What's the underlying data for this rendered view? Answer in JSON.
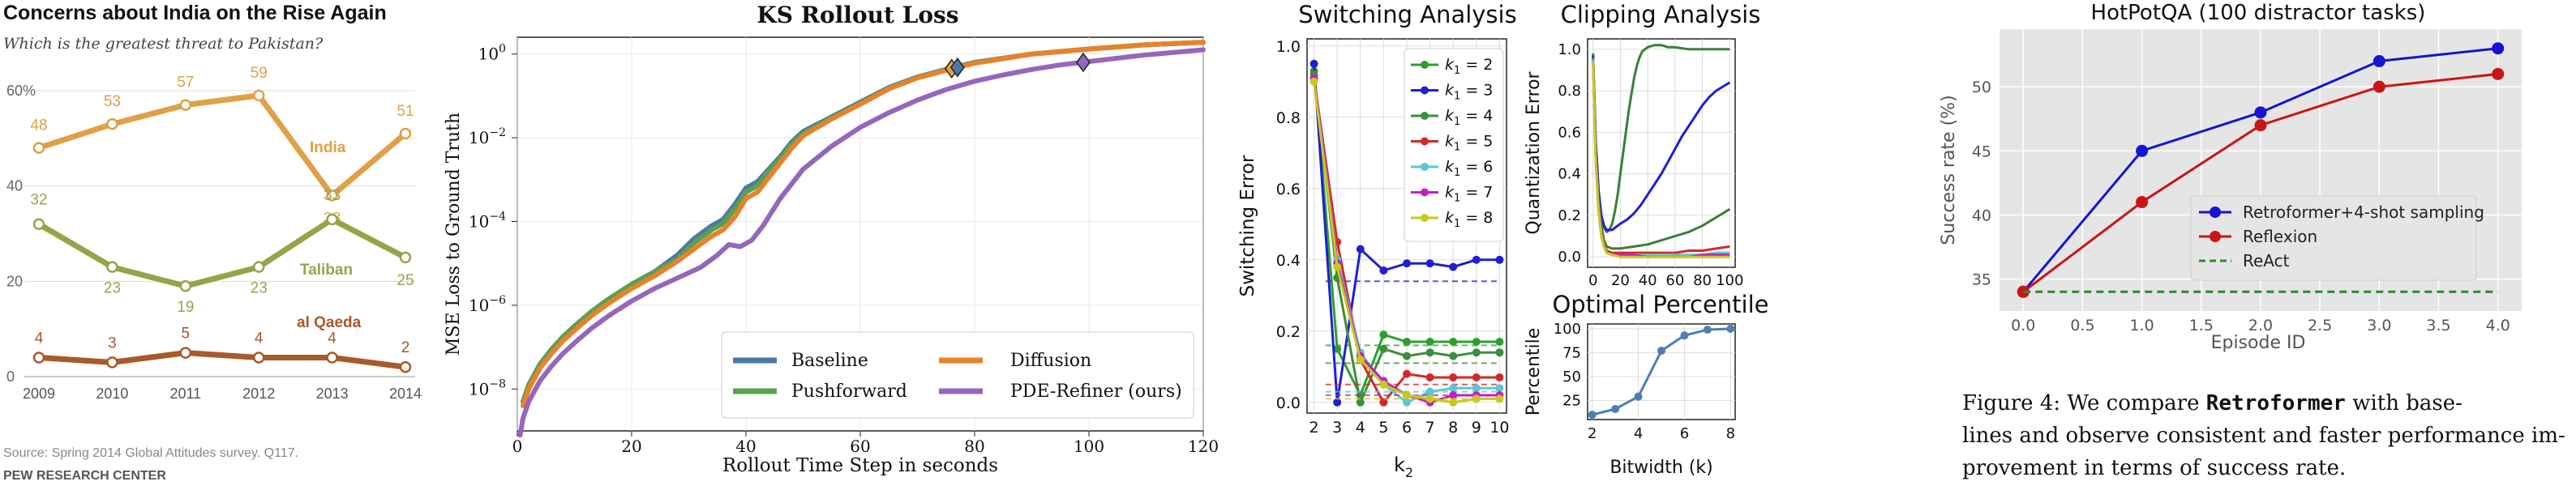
{
  "chart_data": [
    {
      "id": "pew",
      "type": "line",
      "title": "Concerns about India on the Rise Again",
      "subtitle": "Which is the greatest threat to Pakistan?",
      "x": [
        2009,
        2010,
        2011,
        2012,
        2013,
        2014
      ],
      "x_ticks": [
        "2009",
        "2010",
        "2011",
        "2012",
        "2013",
        "2014"
      ],
      "ylim": [
        0,
        60
      ],
      "y_ticks": [
        0,
        20,
        40,
        60
      ],
      "y_top_label": "60%",
      "series": [
        {
          "name": "India",
          "color": "#e0a045",
          "values": [
            48,
            53,
            57,
            59,
            38,
            51
          ],
          "labels": [
            "48",
            "53",
            "57",
            "59",
            "38",
            "51"
          ]
        },
        {
          "name": "Taliban",
          "color": "#98a348",
          "values": [
            32,
            23,
            19,
            23,
            33,
            25
          ],
          "labels": [
            "32",
            "23",
            "19",
            "23",
            "33",
            "25"
          ]
        },
        {
          "name": "al Qaeda",
          "color": "#a85a2c",
          "values": [
            4,
            3,
            5,
            4,
            4,
            2
          ],
          "labels": [
            "4",
            "3",
            "5",
            "4",
            "4",
            "2"
          ]
        }
      ],
      "source": "Source: Spring 2014 Global Attitudes survey. Q117.",
      "brand": "PEW RESEARCH CENTER",
      "grid": false
    },
    {
      "id": "ks",
      "type": "line",
      "title": "KS Rollout Loss",
      "xlabel": "Rollout Time Step in seconds",
      "ylabel": "MSE Loss to Ground Truth",
      "xlim": [
        0,
        120
      ],
      "x_ticks": [
        0,
        20,
        40,
        60,
        80,
        100,
        120
      ],
      "y_scale": "log",
      "ylim_exp": [
        -9,
        0.4
      ],
      "y_ticks": [
        {
          "exp": 0,
          "label": "10",
          "sup": "0"
        },
        {
          "exp": -2,
          "label": "10",
          "sup": "−2"
        },
        {
          "exp": -4,
          "label": "10",
          "sup": "−4"
        },
        {
          "exp": -6,
          "label": "10",
          "sup": "−6"
        },
        {
          "exp": -8,
          "label": "10",
          "sup": "−8"
        }
      ],
      "series": [
        {
          "name": "Baseline",
          "color": "#4c78a8",
          "x": [
            1,
            2,
            4,
            6,
            8,
            10,
            13,
            16,
            20,
            24,
            28,
            31,
            34,
            36,
            38,
            40,
            42,
            44,
            46,
            48,
            50,
            55,
            60,
            65,
            70,
            76,
            80,
            90,
            100,
            110,
            120
          ],
          "y": [
            -8.3,
            -7.9,
            -7.4,
            -7.05,
            -6.75,
            -6.5,
            -6.15,
            -5.85,
            -5.5,
            -5.2,
            -4.8,
            -4.4,
            -4.1,
            -3.95,
            -3.6,
            -3.2,
            -3.05,
            -2.75,
            -2.45,
            -2.1,
            -1.85,
            -1.5,
            -1.15,
            -0.8,
            -0.55,
            -0.33,
            -0.2,
            0.0,
            0.12,
            0.22,
            0.28
          ]
        },
        {
          "name": "Pushforward",
          "color": "#59a14f",
          "x": [
            1,
            2,
            4,
            6,
            8,
            10,
            13,
            16,
            20,
            24,
            28,
            31,
            34,
            36,
            38,
            40,
            42,
            44,
            46,
            48,
            50,
            55,
            60,
            65,
            70,
            76,
            80,
            90,
            100,
            110,
            120
          ],
          "y": [
            -8.3,
            -7.9,
            -7.4,
            -7.05,
            -6.75,
            -6.5,
            -6.15,
            -5.85,
            -5.5,
            -5.2,
            -4.9,
            -4.5,
            -4.2,
            -4.05,
            -3.7,
            -3.3,
            -3.15,
            -2.8,
            -2.5,
            -2.15,
            -1.9,
            -1.52,
            -1.18,
            -0.82,
            -0.56,
            -0.34,
            -0.21,
            0.0,
            0.12,
            0.22,
            0.28
          ]
        },
        {
          "name": "Diffusion",
          "color": "#e8822a",
          "x": [
            1,
            2,
            4,
            6,
            8,
            10,
            13,
            16,
            20,
            24,
            28,
            31,
            34,
            36,
            38,
            40,
            42,
            44,
            46,
            48,
            50,
            55,
            60,
            65,
            70,
            76,
            80,
            90,
            100,
            110,
            120
          ],
          "y": [
            -8.4,
            -8.0,
            -7.5,
            -7.15,
            -6.85,
            -6.6,
            -6.25,
            -5.95,
            -5.6,
            -5.3,
            -4.95,
            -4.65,
            -4.35,
            -4.2,
            -3.9,
            -3.45,
            -3.3,
            -2.95,
            -2.6,
            -2.25,
            -1.95,
            -1.55,
            -1.2,
            -0.83,
            -0.57,
            -0.35,
            -0.22,
            0.0,
            0.12,
            0.22,
            0.28
          ]
        },
        {
          "name": "PDE-Refiner (ours)",
          "color": "#9467bd",
          "x": [
            0.5,
            1,
            2,
            4,
            6,
            8,
            10,
            13,
            16,
            20,
            24,
            28,
            32,
            35,
            37,
            39,
            41,
            43,
            46,
            50,
            55,
            60,
            65,
            70,
            75,
            80,
            85,
            90,
            95,
            100,
            110,
            120
          ],
          "y": [
            -9.1,
            -8.7,
            -8.3,
            -7.8,
            -7.45,
            -7.15,
            -6.9,
            -6.55,
            -6.25,
            -5.9,
            -5.6,
            -5.35,
            -5.1,
            -4.8,
            -4.55,
            -4.6,
            -4.45,
            -4.1,
            -3.45,
            -2.75,
            -2.2,
            -1.75,
            -1.4,
            -1.1,
            -0.85,
            -0.65,
            -0.5,
            -0.37,
            -0.26,
            -0.18,
            -0.02,
            0.1
          ]
        }
      ],
      "markers": [
        {
          "series": "Diffusion",
          "x": 76,
          "y": -0.35,
          "color": "#e8a23a"
        },
        {
          "series": "Baseline",
          "x": 77,
          "y": -0.32,
          "color": "#4c78a8"
        },
        {
          "series": "PDE-Refiner (ours)",
          "x": 99,
          "y": -0.2,
          "color": "#9467bd"
        }
      ],
      "legend_position": "lower-right",
      "grid": true
    },
    {
      "id": "switching",
      "type": "line",
      "title": "Switching Analysis",
      "xlabel": "k",
      "xlabel_sub": "2",
      "ylabel": "Switching Error",
      "xlim": [
        1.7,
        10.3
      ],
      "ylim": [
        -0.03,
        1.02
      ],
      "x_ticks": [
        2,
        3,
        4,
        5,
        6,
        7,
        8,
        9,
        10
      ],
      "y_ticks": [
        0.0,
        0.2,
        0.4,
        0.6,
        0.8,
        1.0
      ],
      "series": [
        {
          "name": "k1 = 2",
          "label": "k",
          "sub": "1",
          "rest": " = 2",
          "color": "#2ca02c",
          "values": [
            0.93,
            0.15,
            0.02,
            0.19,
            0.17,
            0.17,
            0.17,
            0.17,
            0.17
          ],
          "dashed_level": 0.16
        },
        {
          "name": "k1 = 3",
          "label": "k",
          "sub": "1",
          "rest": " = 3",
          "color": "#1f1fd6",
          "values": [
            0.95,
            0.0,
            0.43,
            0.37,
            0.39,
            0.39,
            0.38,
            0.4,
            0.4
          ],
          "dashed_level": 0.34
        },
        {
          "name": "k1 = 4",
          "label": "k",
          "sub": "1",
          "rest": " = 4",
          "color": "#3a8f3a",
          "values": [
            0.92,
            0.35,
            0.0,
            0.15,
            0.13,
            0.14,
            0.13,
            0.14,
            0.14
          ],
          "dashed_level": 0.11
        },
        {
          "name": "k1 = 5",
          "label": "k",
          "sub": "1",
          "rest": " = 5",
          "color": "#d62728",
          "values": [
            0.91,
            0.45,
            0.12,
            0.0,
            0.08,
            0.07,
            0.07,
            0.07,
            0.07
          ],
          "dashed_level": 0.05
        },
        {
          "name": "k1 = 6",
          "label": "k",
          "sub": "1",
          "rest": " = 6",
          "color": "#5bc7d0",
          "values": [
            0.91,
            0.4,
            0.14,
            0.05,
            0.0,
            0.03,
            0.04,
            0.04,
            0.04
          ],
          "dashed_level": 0.03
        },
        {
          "name": "k1 = 7",
          "label": "k",
          "sub": "1",
          "rest": " = 7",
          "color": "#c41fc4",
          "values": [
            0.91,
            0.39,
            0.13,
            0.06,
            0.02,
            0.0,
            0.02,
            0.02,
            0.02
          ],
          "dashed_level": 0.02
        },
        {
          "name": "k1 = 8",
          "label": "k",
          "sub": "1",
          "rest": " = 8",
          "color": "#c8c81e",
          "values": [
            0.9,
            0.38,
            0.12,
            0.05,
            0.02,
            0.01,
            0.0,
            0.01,
            0.01
          ],
          "dashed_level": 0.01
        }
      ],
      "legend_position": "upper-right",
      "grid": true
    },
    {
      "id": "clipping",
      "type": "line",
      "title": "Clipping Analysis",
      "ylabel": "Quantization Error",
      "xlim": [
        -4,
        104
      ],
      "ylim": [
        -0.05,
        1.05
      ],
      "x_ticks": [
        0,
        20,
        40,
        60,
        80,
        100
      ],
      "y_ticks": [
        0.0,
        0.2,
        0.4,
        0.6,
        0.8,
        1.0
      ],
      "series": [
        {
          "color": "#3a7f3a",
          "x": [
            0,
            2,
            4,
            6,
            8,
            10,
            12,
            14,
            16,
            18,
            20,
            22,
            24,
            26,
            28,
            30,
            32,
            34,
            36,
            38,
            40,
            45,
            50,
            55,
            60,
            70,
            80,
            90,
            100
          ],
          "y": [
            0.98,
            0.55,
            0.32,
            0.2,
            0.14,
            0.12,
            0.13,
            0.16,
            0.22,
            0.3,
            0.4,
            0.5,
            0.6,
            0.7,
            0.78,
            0.86,
            0.92,
            0.96,
            0.99,
            1.0,
            1.01,
            1.02,
            1.02,
            1.01,
            1.01,
            1.0,
            1.0,
            1.0,
            1.0
          ]
        },
        {
          "color": "#1f1fd6",
          "x": [
            0,
            2,
            4,
            6,
            8,
            10,
            12,
            14,
            16,
            18,
            20,
            25,
            30,
            35,
            40,
            45,
            50,
            55,
            60,
            65,
            70,
            75,
            80,
            85,
            90,
            95,
            100
          ],
          "y": [
            0.97,
            0.55,
            0.32,
            0.2,
            0.15,
            0.13,
            0.13,
            0.13,
            0.14,
            0.15,
            0.16,
            0.18,
            0.21,
            0.25,
            0.3,
            0.35,
            0.4,
            0.46,
            0.52,
            0.58,
            0.63,
            0.68,
            0.73,
            0.77,
            0.8,
            0.82,
            0.84
          ]
        },
        {
          "color": "#3a7f3a",
          "x": [
            0,
            2,
            4,
            6,
            8,
            10,
            14,
            20,
            30,
            40,
            50,
            60,
            70,
            80,
            90,
            100
          ],
          "y": [
            0.96,
            0.5,
            0.27,
            0.15,
            0.08,
            0.05,
            0.04,
            0.04,
            0.05,
            0.06,
            0.08,
            0.1,
            0.12,
            0.15,
            0.19,
            0.23
          ]
        },
        {
          "color": "#d62728",
          "x": [
            0,
            2,
            4,
            6,
            8,
            10,
            14,
            20,
            30,
            40,
            50,
            60,
            70,
            80,
            90,
            100
          ],
          "y": [
            0.95,
            0.48,
            0.25,
            0.12,
            0.06,
            0.03,
            0.02,
            0.02,
            0.02,
            0.02,
            0.02,
            0.02,
            0.03,
            0.03,
            0.04,
            0.05
          ]
        },
        {
          "color": "#5bc7d0",
          "x": [
            0,
            2,
            4,
            6,
            8,
            10,
            14,
            20,
            30,
            40,
            50,
            60,
            70,
            80,
            90,
            100
          ],
          "y": [
            0.95,
            0.47,
            0.24,
            0.11,
            0.05,
            0.02,
            0.01,
            0.01,
            0.01,
            0.01,
            0.01,
            0.01,
            0.01,
            0.01,
            0.02,
            0.02
          ]
        },
        {
          "color": "#c41fc4",
          "x": [
            0,
            2,
            4,
            6,
            8,
            10,
            14,
            20,
            30,
            40,
            50,
            60,
            70,
            80,
            90,
            100
          ],
          "y": [
            0.94,
            0.46,
            0.23,
            0.1,
            0.05,
            0.02,
            0.01,
            0.01,
            0.01,
            0.0,
            0.0,
            0.0,
            0.0,
            0.01,
            0.01,
            0.01
          ]
        },
        {
          "color": "#c8c81e",
          "x": [
            0,
            2,
            4,
            6,
            8,
            10,
            14,
            20,
            30,
            40,
            50,
            60,
            70,
            80,
            90,
            100
          ],
          "y": [
            0.94,
            0.45,
            0.22,
            0.1,
            0.05,
            0.02,
            0.01,
            0.0,
            0.0,
            0.0,
            0.0,
            0.0,
            0.0,
            0.0,
            0.0,
            0.0
          ]
        }
      ],
      "grid": true
    },
    {
      "id": "percentile",
      "type": "line",
      "title": "Optimal Percentile",
      "xlabel": "Bitwidth (k)",
      "ylabel": "Percentile",
      "xlim": [
        1.8,
        8.2
      ],
      "ylim": [
        5,
        105
      ],
      "x_ticks": [
        2,
        4,
        6,
        8
      ],
      "y_ticks": [
        25,
        50,
        75,
        100
      ],
      "series": [
        {
          "color": "#4c7fb5",
          "x": [
            2,
            3,
            4,
            5,
            6,
            7,
            8
          ],
          "y": [
            10,
            16,
            29,
            77,
            93,
            99,
            100
          ]
        }
      ],
      "grid": true
    },
    {
      "id": "hotpotqa",
      "type": "line",
      "title": "HotPotQA (100 distractor tasks)",
      "xlabel": "Episode ID",
      "ylabel": "Success rate (%)",
      "xlim": [
        -0.2,
        4.2
      ],
      "ylim": [
        32.5,
        54.5
      ],
      "x_ticks": [
        "0.0",
        "0.5",
        "1.0",
        "1.5",
        "2.0",
        "2.5",
        "3.0",
        "3.5",
        "4.0"
      ],
      "y_ticks": [
        35,
        40,
        45,
        50
      ],
      "series": [
        {
          "name": "Retroformer+4-shot sampling",
          "color": "#1414d2",
          "style": "line-marker",
          "x": [
            0,
            1,
            2,
            3,
            4
          ],
          "y": [
            34,
            45,
            48,
            52,
            53
          ]
        },
        {
          "name": "Reflexion",
          "color": "#cc1414",
          "style": "line-marker",
          "x": [
            0,
            1,
            2,
            3,
            4
          ],
          "y": [
            34,
            41,
            47,
            50,
            51
          ]
        },
        {
          "name": "ReAct",
          "color": "#2a8a2a",
          "style": "dashed",
          "x": [
            0,
            4
          ],
          "y": [
            34,
            34
          ]
        }
      ],
      "legend_position": "center-right",
      "grid": true
    }
  ],
  "caption": {
    "line1_pre": "Figure 4:  We compare ",
    "line1_bold": "Retroformer",
    "line1_post": " with base-",
    "line2": "lines and observe consistent and faster performance im-",
    "line3": "provement in terms of success rate."
  }
}
